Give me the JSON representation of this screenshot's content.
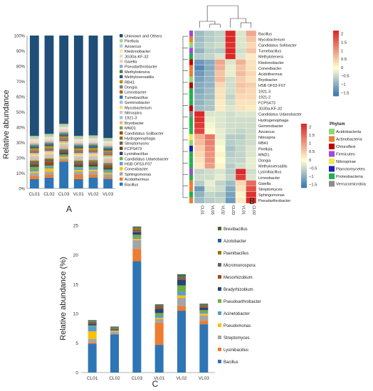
{
  "panel_letters": {
    "a": "A",
    "b": "B",
    "c": "C"
  },
  "chart_data": [
    {
      "id": "A",
      "type": "bar",
      "stacked": true,
      "ylabel": "Relative abundance",
      "ytick_labels": [
        "0%",
        "10%",
        "20%",
        "30%",
        "40%",
        "50%",
        "60%",
        "70%",
        "80%",
        "90%",
        "100%"
      ],
      "ylim": [
        0,
        100
      ],
      "categories": [
        "CL01",
        "CL02",
        "CL03",
        "VL01",
        "VL02",
        "VL03"
      ],
      "legend_position": "right",
      "series": [
        {
          "name": "Bacillus",
          "color": "#2e75b6",
          "values": [
            6,
            7,
            17,
            6,
            7,
            6
          ]
        },
        {
          "name": "Acidothermus",
          "color": "#ed7d31",
          "values": [
            2,
            2,
            1,
            3,
            2,
            1
          ]
        },
        {
          "name": "Sphingomonas",
          "color": "#a5a5a5",
          "values": [
            2,
            2,
            1,
            2,
            2,
            2
          ]
        },
        {
          "name": "Conexibacter",
          "color": "#ffc000",
          "values": [
            1,
            2,
            1,
            1,
            1,
            1
          ]
        },
        {
          "name": "HSB OF53-F07",
          "color": "#5b9bd5",
          "values": [
            1,
            1,
            0.5,
            1,
            1,
            1
          ]
        },
        {
          "name": "Candidatus Udaeobacter",
          "color": "#70ad47",
          "values": [
            2,
            1,
            1,
            1,
            1,
            1
          ]
        },
        {
          "name": "Lysinibacillus",
          "color": "#264478",
          "values": [
            1,
            0.5,
            1,
            1,
            1,
            1
          ]
        },
        {
          "name": "Candidatus Solibacter",
          "color": "#9e480e",
          "values": [
            1,
            2,
            1,
            1,
            1,
            1
          ]
        },
        {
          "name": "Streptomyces",
          "color": "#636363",
          "values": [
            1,
            1,
            1,
            1,
            1,
            1
          ]
        },
        {
          "name": "Hydrogenophaga",
          "color": "#997300",
          "values": [
            1,
            1,
            0.5,
            1,
            1,
            1
          ]
        },
        {
          "name": "1921-3",
          "color": "#9dc3e6",
          "values": [
            1,
            1,
            1,
            1,
            1,
            1
          ]
        },
        {
          "name": "Bryobacter",
          "color": "#f4b183",
          "values": [
            1,
            1,
            1,
            1,
            1,
            1
          ]
        },
        {
          "name": "Nitrospira",
          "color": "#c9c9c9",
          "values": [
            1,
            1,
            1,
            1,
            1,
            1
          ]
        },
        {
          "name": "Mycobacterium",
          "color": "#ffd966",
          "values": [
            1,
            1,
            1,
            1,
            1,
            1
          ]
        },
        {
          "name": "Gemmobacter",
          "color": "#9dc3e6",
          "values": [
            1,
            1,
            1,
            1,
            1,
            1
          ]
        },
        {
          "name": "Limnobacter",
          "color": "#c55a11",
          "values": [
            1,
            1,
            1,
            1,
            1,
            1
          ]
        },
        {
          "name": "Dongia",
          "color": "#7f7f7f",
          "values": [
            1,
            1,
            1,
            1,
            1,
            1
          ]
        },
        {
          "name": "RB41",
          "color": "#bf9000",
          "values": [
            1,
            1,
            1,
            1,
            1,
            1
          ]
        },
        {
          "name": "Methyloversatilis",
          "color": "#2f5597",
          "values": [
            1,
            1,
            1,
            1,
            1,
            1
          ]
        },
        {
          "name": "Methylotenera",
          "color": "#548235",
          "values": [
            1,
            1,
            1,
            1,
            1,
            1
          ]
        },
        {
          "name": "Pseudarthrobacter",
          "color": "#8faadc",
          "values": [
            1,
            1,
            1,
            1,
            1,
            1
          ]
        },
        {
          "name": "Gaiella",
          "color": "#f8cbad",
          "values": [
            1,
            1,
            1,
            1,
            1,
            1
          ]
        },
        {
          "name": "JG30a-KF-32",
          "color": "#dbdbdb",
          "values": [
            1,
            1,
            1,
            1,
            1,
            1
          ]
        },
        {
          "name": "Ktedonobacter",
          "color": "#ffe699",
          "values": [
            1,
            1,
            1,
            1,
            1,
            1
          ]
        },
        {
          "name": "Azoarcus",
          "color": "#b4c7e7",
          "values": [
            1,
            1,
            1,
            1,
            1,
            1
          ]
        },
        {
          "name": "Pirellula",
          "color": "#a9d18e",
          "values": [
            1,
            1,
            1,
            1,
            1,
            1
          ]
        },
        {
          "name": "Unknown and Others",
          "color": "#1f4e79",
          "values": [
            65,
            64,
            56,
            65,
            64,
            65
          ]
        }
      ],
      "legend_order": [
        "Unknown and Others",
        "Pirellula",
        "Azoarcus",
        "Ktedonobacter",
        "JG30a-KF-32",
        "Gaiella",
        "Pseudarthrobacter",
        "Methylotenera",
        "Methyloversatilis",
        "RB41",
        "Dongia",
        "Limnobacter",
        "Tumebacillus",
        "Gemmobacter",
        "Mycobacterium",
        "Nitrospira",
        "1921-3",
        "Bryobacter",
        "MND1",
        "Candidatus Solibacter",
        "Hydrogenophaga",
        "Streptomyces",
        "FCPS473",
        "Lysinibacillus",
        "Candidatus Udaeobacter",
        "HSB OF53-F07",
        "Conexibacter",
        "Sphingomonas",
        "Acidothermus",
        "Bacillus"
      ],
      "legend_colors": [
        "#1f4e79",
        "#a9d18e",
        "#b4c7e7",
        "#ffe699",
        "#dbdbdb",
        "#f8cbad",
        "#8faadc",
        "#548235",
        "#2f5597",
        "#bf9000",
        "#7f7f7f",
        "#c55a11",
        "#2e75b6",
        "#9dc3e6",
        "#ffd966",
        "#c9c9c9",
        "#9dc3e6",
        "#f4b183",
        "#70ad47",
        "#9e480e",
        "#997300",
        "#636363",
        "#843c0c",
        "#264478",
        "#70ad47",
        "#5b9bd5",
        "#ffc000",
        "#a5a5a5",
        "#ed7d31",
        "#2e75b6"
      ]
    },
    {
      "id": "B",
      "type": "heatmap",
      "columns": [
        "CL01",
        "VL03",
        "VL02",
        "CL03",
        "VL01",
        "CL02"
      ],
      "rows": [
        "Bacillus",
        "Mycobacterium",
        "Candidatus Solibacter",
        "Tumebacillus",
        "Methylotenera",
        "Ktedonobacter",
        "Conexibacter",
        "Acidothermus",
        "Bryobacter",
        "HSB OF53-F07",
        "1921-3",
        "1921-2",
        "FCPS473",
        "JG30a-KF-32",
        "Candidatus Udaeobacter",
        "Hydrogenophaga",
        "Gemmobacter",
        "Azoarcus",
        "Nitrospira",
        "RB41",
        "Pirellula",
        "MND1",
        "Dongia",
        "Methyloversatilis",
        "Lysinibacillus",
        "Limnobacter",
        "Gaiella",
        "Streptomyces",
        "Sphingomonas",
        "Pseudarthrobacter"
      ],
      "row_phylum": [
        "Firmicutes",
        "Actinobacteria",
        "Acidobacteria",
        "Firmicutes",
        "Proteobacteria",
        "Chloroflexi",
        "Actinobacteria",
        "Actinobacteria",
        "Acidobacteria",
        "Chloroflexi",
        "Proteobacteria",
        "Proteobacteria",
        "Proteobacteria",
        "Chloroflexi",
        "Verrucomicrobia",
        "Proteobacteria",
        "Proteobacteria",
        "Proteobacteria",
        "Nitrospirae",
        "Acidobacteria",
        "Planctomycetes",
        "Proteobacteria",
        "Proteobacteria",
        "Proteobacteria",
        "Firmicutes",
        "Proteobacteria",
        "Actinobacteria",
        "Actinobacteria",
        "Proteobacteria",
        "Actinobacteria"
      ],
      "values": [
        [
          -0.8,
          -0.6,
          -0.5,
          2.2,
          -0.3,
          0.9
        ],
        [
          -0.8,
          -0.6,
          -0.5,
          2.2,
          -0.3,
          0.6
        ],
        [
          -0.7,
          -0.5,
          -0.4,
          2.1,
          -0.3,
          0.4
        ],
        [
          -0.9,
          -0.6,
          -0.6,
          2.2,
          -0.4,
          0.6
        ],
        [
          -0.6,
          -0.5,
          -0.3,
          2.2,
          -0.3,
          0.2
        ],
        [
          -1.2,
          -1.0,
          0.9,
          -0.3,
          0.8,
          0.3
        ],
        [
          -1.4,
          -1.0,
          0.8,
          -0.2,
          0.6,
          0.3
        ],
        [
          -1.2,
          -0.9,
          0.6,
          -0.2,
          0.7,
          0.4
        ],
        [
          -1.1,
          -0.9,
          0.7,
          -0.4,
          0.5,
          0.3
        ],
        [
          -1.0,
          -0.9,
          0.4,
          -0.4,
          0.6,
          0.5
        ],
        [
          -1.0,
          -0.8,
          0.3,
          -0.4,
          0.5,
          0.4
        ],
        [
          -0.9,
          -0.8,
          0.3,
          -0.5,
          0.4,
          0.4
        ],
        [
          -0.9,
          -0.7,
          0.2,
          -0.4,
          0.3,
          0.3
        ],
        [
          -0.8,
          -0.7,
          0.2,
          -0.3,
          0.3,
          0.2
        ],
        [
          2.2,
          -0.3,
          -0.3,
          -0.4,
          -0.3,
          -0.3
        ],
        [
          2.1,
          -0.2,
          -0.3,
          -0.4,
          -0.4,
          -0.4
        ],
        [
          2.0,
          -0.1,
          -0.3,
          -0.4,
          -0.4,
          -0.4
        ],
        [
          1.9,
          0.0,
          -0.2,
          -0.4,
          -0.5,
          -0.4
        ],
        [
          0.8,
          1.4,
          -0.2,
          -0.6,
          -0.6,
          -0.4
        ],
        [
          0.7,
          1.3,
          -0.1,
          -0.6,
          -0.5,
          -0.4
        ],
        [
          0.5,
          1.2,
          0.0,
          -0.7,
          -0.5,
          -0.3
        ],
        [
          0.4,
          1.1,
          0.1,
          -0.6,
          -0.5,
          -0.3
        ],
        [
          0.3,
          1.1,
          0.0,
          -0.5,
          -0.5,
          -0.2
        ],
        [
          0.2,
          1.0,
          0.1,
          -0.6,
          -0.4,
          -0.2
        ],
        [
          -0.5,
          -0.4,
          -0.3,
          -0.6,
          2.2,
          -0.4
        ],
        [
          -0.4,
          -0.4,
          -0.2,
          -0.5,
          2.0,
          -0.3
        ],
        [
          -0.6,
          -0.2,
          -0.5,
          -0.8,
          0.4,
          1.5
        ],
        [
          -1.2,
          -0.3,
          -0.4,
          -1.0,
          0.3,
          1.8
        ],
        [
          -0.9,
          -0.5,
          -0.6,
          -1.1,
          0.1,
          2.1
        ],
        [
          -0.8,
          -0.6,
          -0.5,
          -1.2,
          0.2,
          2.2
        ]
      ],
      "color_scale_ticks": [
        "2",
        "1.5",
        "1",
        "0.5",
        "0",
        "−0.5",
        "−1",
        "−1.5"
      ],
      "color_range": [
        -1.7,
        2.2
      ],
      "legend_title": "Phylum",
      "phyla": [
        {
          "name": "Acidobacteria",
          "color": "#8ed973"
        },
        {
          "name": "Actinobacteria",
          "color": "#ed7d31"
        },
        {
          "name": "Chloroflexi",
          "color": "#c00000"
        },
        {
          "name": "Firmicutes",
          "color": "#a04ad6"
        },
        {
          "name": "Nitrospirae",
          "color": "#f2e94e"
        },
        {
          "name": "Planctomycetes",
          "color": "#1f1fbf"
        },
        {
          "name": "Proteobacteria",
          "color": "#22b14c"
        },
        {
          "name": "Verrucomicrobia",
          "color": "#8c8c8c"
        }
      ]
    },
    {
      "id": "C",
      "type": "bar",
      "stacked": true,
      "ylabel": "Relative abundance (%)",
      "ylim": [
        0,
        25
      ],
      "yticks": [
        0,
        5,
        10,
        15,
        20,
        25
      ],
      "categories": [
        "CL01",
        "CL02",
        "CL03",
        "VL01",
        "VL02",
        "VL03"
      ],
      "legend_position": "right",
      "series": [
        {
          "name": "Bacillus",
          "color": "#2e75b6",
          "values": [
            4.9,
            6.5,
            18.9,
            4.7,
            10.5,
            8.2
          ]
        },
        {
          "name": "Lysinibacillus",
          "color": "#ed7d31",
          "values": [
            0.2,
            0.1,
            2.1,
            3.8,
            0.8,
            0.6
          ]
        },
        {
          "name": "Streptomyces",
          "color": "#a5a5a5",
          "values": [
            0.6,
            0.3,
            1.5,
            0.6,
            1.4,
            0.9
          ]
        },
        {
          "name": "Pseudomonas",
          "color": "#ffc000",
          "values": [
            1.3,
            0.1,
            0.2,
            0.2,
            0.4,
            0.3
          ]
        },
        {
          "name": "Acinetobacter",
          "color": "#5b9bd5",
          "values": [
            0.8,
            0.1,
            0.2,
            0.3,
            0.6,
            0.2
          ]
        },
        {
          "name": "Pseudoarthrobacter",
          "color": "#70ad47",
          "values": [
            0.2,
            0.1,
            0.5,
            0.5,
            1.1,
            0.4
          ]
        },
        {
          "name": "Bradyrhizobium",
          "color": "#264478",
          "values": [
            0.3,
            0.1,
            0.4,
            0.7,
            0.9,
            0.4
          ]
        },
        {
          "name": "Mesorhizobium",
          "color": "#9e480e",
          "values": [
            0.1,
            0.1,
            0.2,
            0.3,
            0.2,
            0.2
          ]
        },
        {
          "name": "Micromonospora",
          "color": "#636363",
          "values": [
            0.2,
            0.1,
            0.3,
            0.2,
            0.3,
            0.2
          ]
        },
        {
          "name": "Paenibacillus",
          "color": "#997300",
          "values": [
            0.1,
            0.1,
            0.3,
            0.1,
            0.1,
            0.1
          ]
        },
        {
          "name": "Azotobacter",
          "color": "#255e91",
          "values": [
            0.1,
            0.1,
            0.1,
            0.1,
            0.2,
            0.1
          ]
        },
        {
          "name": "Brevibacillus",
          "color": "#43682b",
          "values": [
            0.1,
            0.1,
            0.1,
            0.1,
            0.2,
            0.1
          ]
        }
      ]
    }
  ]
}
